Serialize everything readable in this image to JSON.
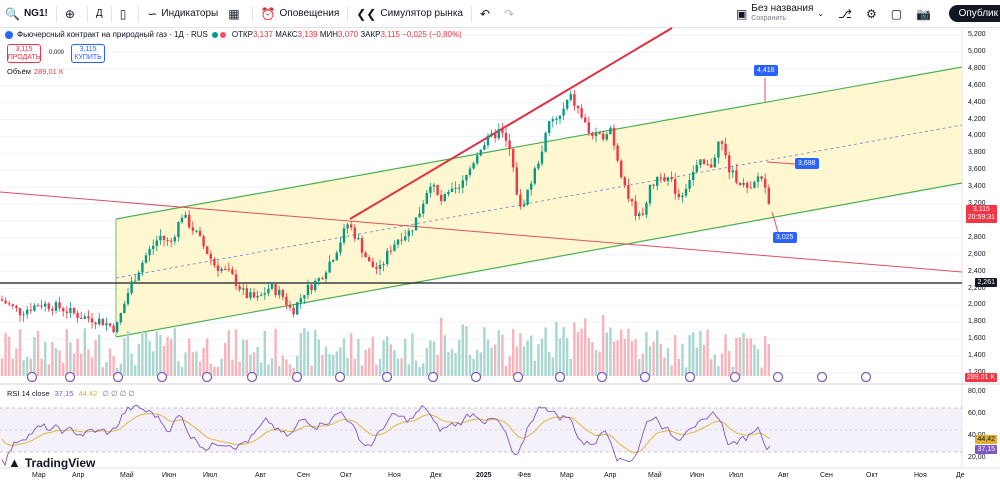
{
  "toolbar": {
    "symbol": "NG1!",
    "interval": "Д",
    "indicators_label": "Индикаторы",
    "alerts_label": "Оповещения",
    "replay_label": "Симулятор рынка",
    "layout_name": "Без названия",
    "layout_status": "Сохранить",
    "publish_label": "Опублик"
  },
  "legend": {
    "title": "Фьючерсный контракт на природный газ · 1Д · RUS",
    "open_label": "ОТКР",
    "open": "3,137",
    "high_label": "МАКС",
    "high": "3,139",
    "low_label": "МИН",
    "low": "3,070",
    "close_label": "ЗАКР",
    "close": "3,115",
    "change": "−0,025 (−0,80%)",
    "sell_price": "3,115",
    "sell_label": "ПРОДАТЬ",
    "spread": "0,000",
    "buy_price": "3,115",
    "buy_label": "КУПИТЬ"
  },
  "volume": {
    "label": "Объём",
    "value": "289,01 К"
  },
  "rsi": {
    "label": "RSI 14 close",
    "value": "37,15",
    "ma": "44,42",
    "extra": "∅ ∅ ∅ ∅"
  },
  "price_axis": [
    "5,200",
    "5,000",
    "4,800",
    "4,600",
    "4,400",
    "4,200",
    "4,000",
    "3,800",
    "3,600",
    "3,400",
    "3,200",
    "3,000",
    "2,800",
    "2,600",
    "2,400",
    "2,200",
    "2,000",
    "1,800",
    "1,600",
    "1,400",
    "1,200"
  ],
  "rsi_axis": [
    "80,00",
    "60,00",
    "40,00",
    "20,00"
  ],
  "tags": {
    "price": "3,115",
    "countdown": "20:59:31",
    "level": "2,261",
    "volume": "289,01 K",
    "rsi_ma": "44,42",
    "rsi_val": "37,15"
  },
  "annotations": [
    "4,418",
    "3,698",
    "3,025"
  ],
  "x_axis": [
    "Мар",
    "Апр",
    "Май",
    "Июн",
    "Июл",
    "Авг",
    "Сен",
    "Окт",
    "Ноя",
    "Дек",
    "2025",
    "Фев",
    "Мар",
    "Апр",
    "Май",
    "Июн",
    "Июл",
    "Авг",
    "Сен",
    "Окт",
    "Ноя",
    "Де"
  ],
  "logo": "TradingView",
  "colors": {
    "up": "#089981",
    "down": "#f23645",
    "channel": "#4caf50",
    "resistance": "#e03040",
    "rsi": "#7e57c2",
    "accent": "#2962ff"
  },
  "icons": [
    "search-icon",
    "plus-icon",
    "candles-icon",
    "indicators-icon",
    "templates-icon",
    "alert-icon",
    "replay-icon",
    "undo-icon",
    "redo-icon",
    "cloud-icon",
    "settings-icon",
    "camera-icon",
    "fullscreen-icon"
  ]
}
